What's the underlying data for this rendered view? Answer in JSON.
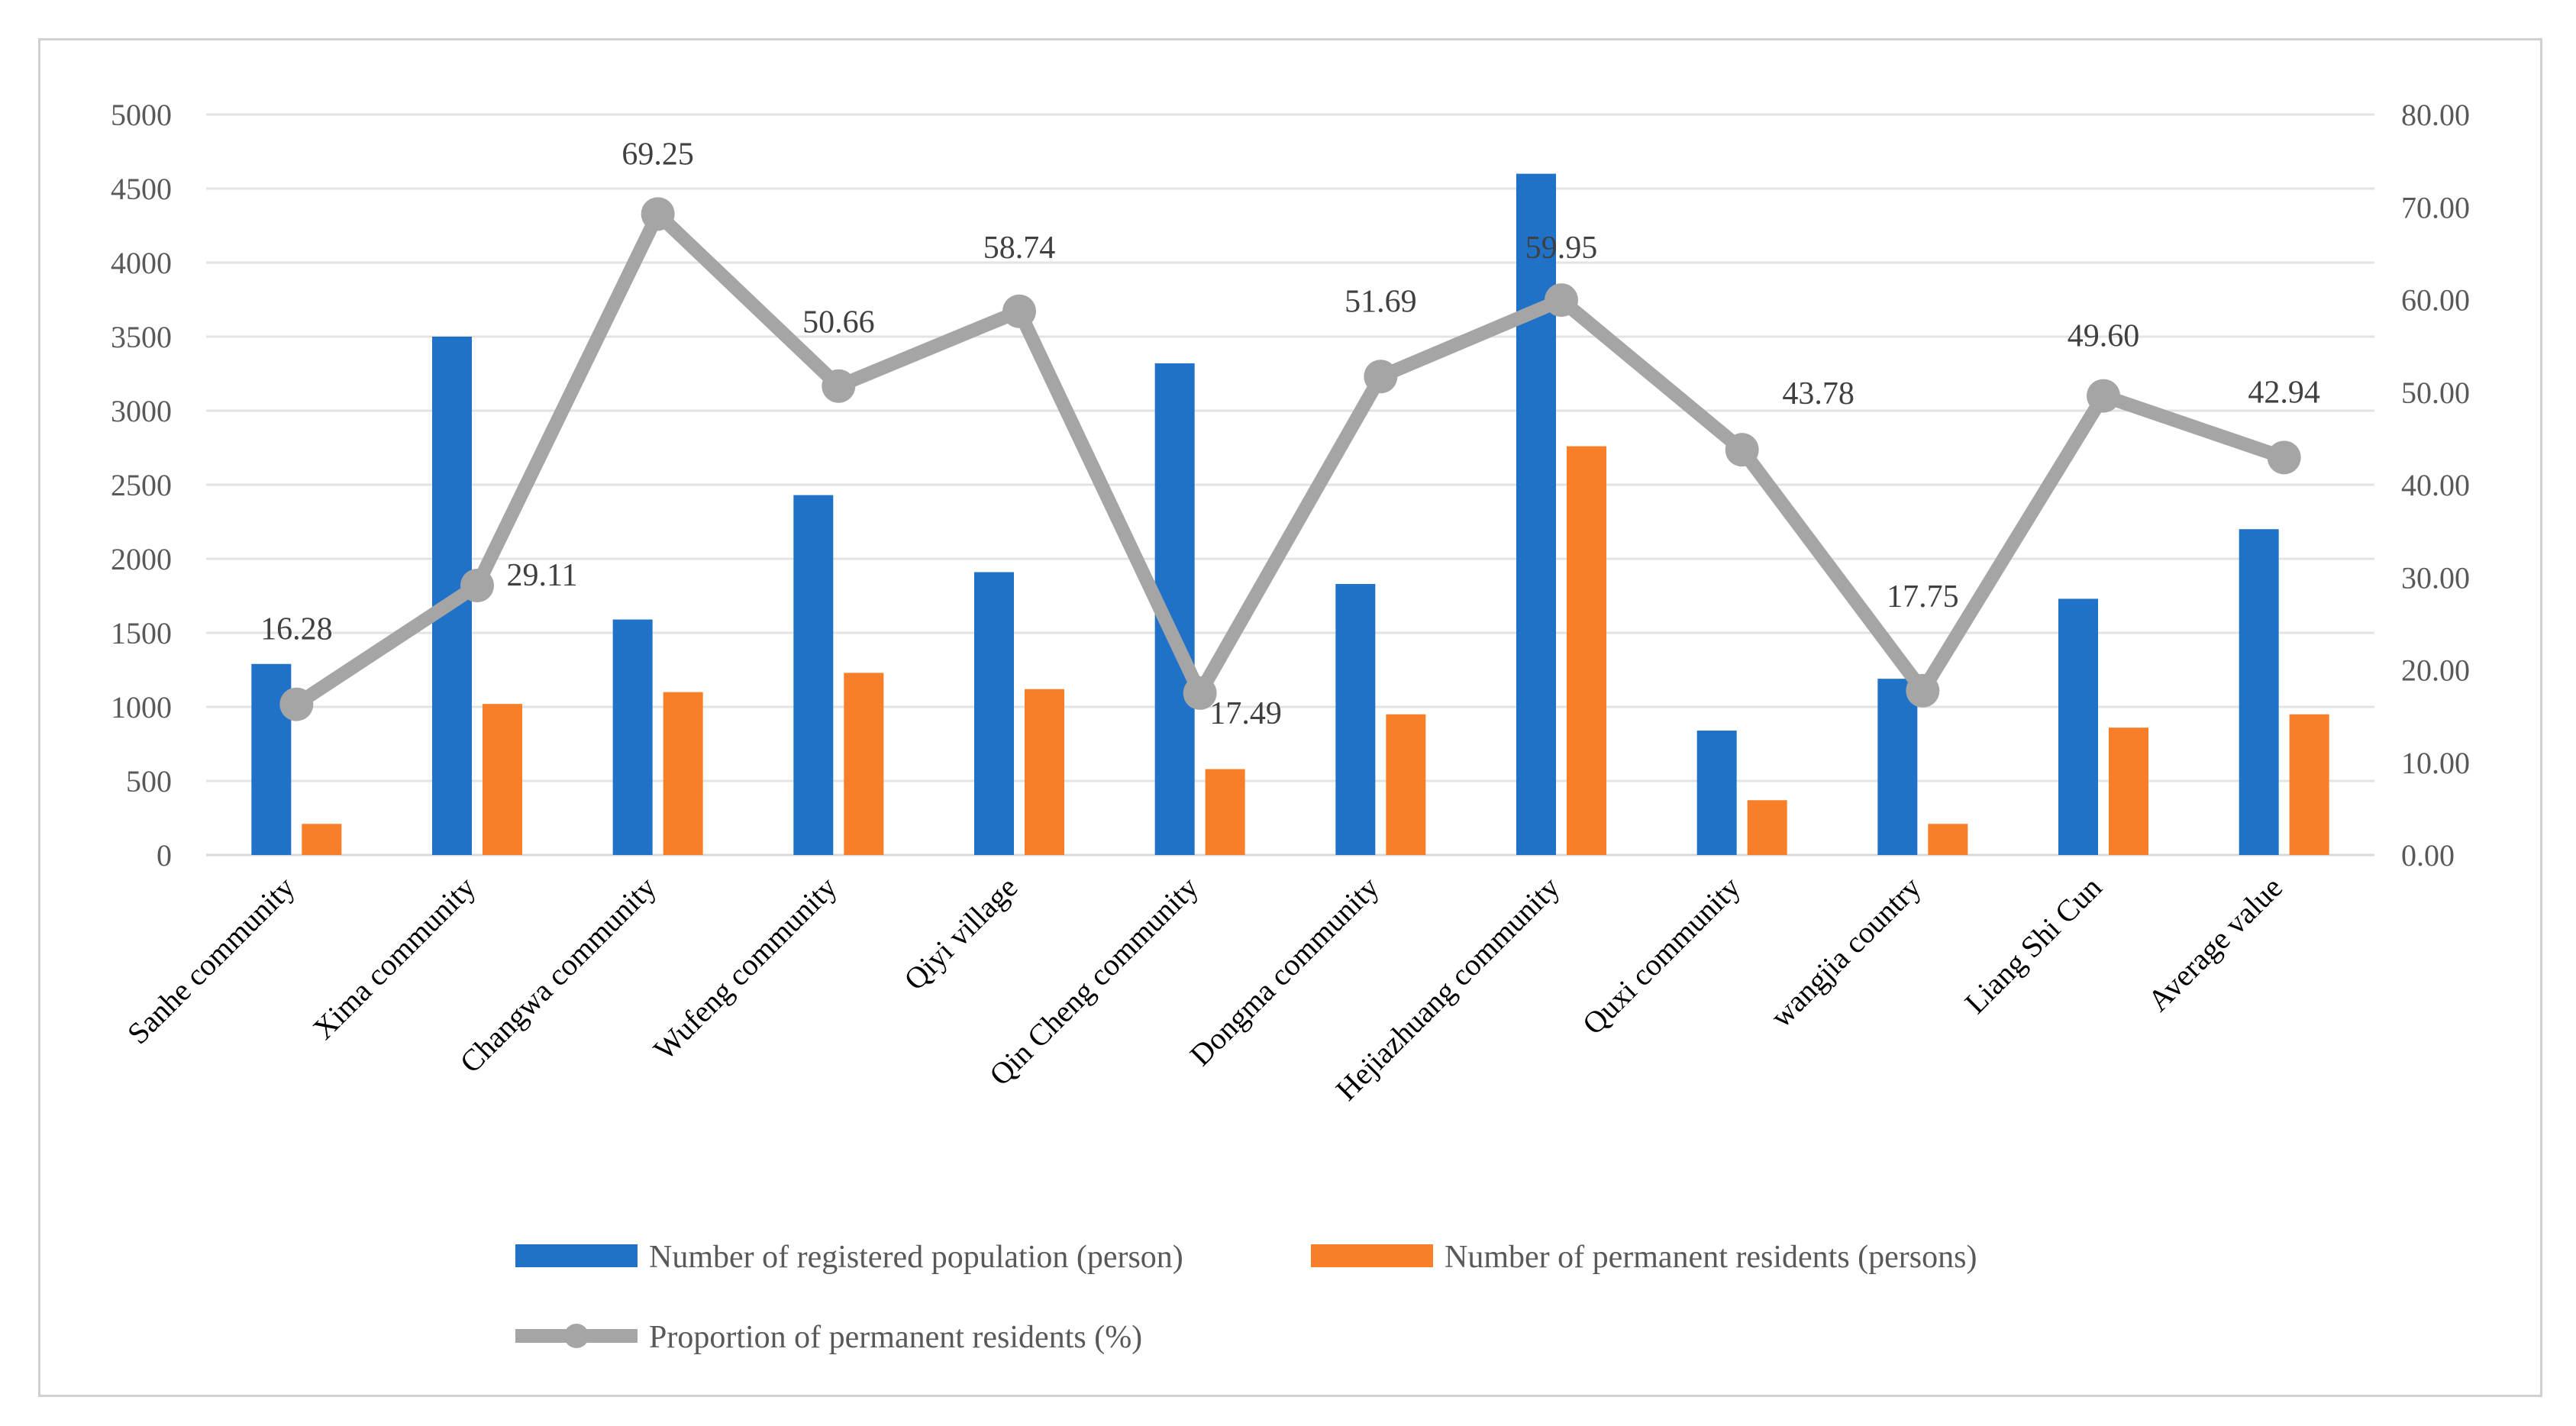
{
  "chart_data": {
    "type": "bar+line",
    "categories": [
      "Sanhe community",
      "Xima community",
      "Changwa community",
      "Wufeng community",
      "Qiyi village",
      "Qin Cheng community",
      "Dongma community",
      "Hejiazhuang community",
      "Quxi community",
      "wangjia country",
      "Liang Shi Cun",
      "Average value"
    ],
    "series": [
      {
        "name": "Number of registered population (person)",
        "type": "bar",
        "axis": "left",
        "color": "#1F72C8",
        "values": [
          1290,
          3500,
          1590,
          2430,
          1910,
          3320,
          1830,
          4600,
          840,
          1190,
          1730,
          2200
        ]
      },
      {
        "name": "Number of permanent residents (persons)",
        "type": "bar",
        "axis": "left",
        "color": "#F97E2A",
        "values": [
          210,
          1020,
          1100,
          1230,
          1120,
          580,
          950,
          2760,
          370,
          210,
          860,
          950
        ]
      },
      {
        "name": "Proportion of permanent residents (%)",
        "type": "line",
        "axis": "right",
        "color": "#A5A5A5",
        "values": [
          16.28,
          29.11,
          69.25,
          50.66,
          58.74,
          17.49,
          51.69,
          59.95,
          43.78,
          17.75,
          49.6,
          42.94
        ],
        "labels": [
          "16.28",
          "29.11",
          "69.25",
          "50.66",
          "58.74",
          "17.49",
          "51.69",
          "59.95",
          "43.78",
          "17.75",
          "49.60",
          "42.94"
        ]
      }
    ],
    "y_left": {
      "min": 0,
      "max": 5000,
      "step": 500,
      "ticks": [
        "0",
        "500",
        "1000",
        "1500",
        "2000",
        "2500",
        "3000",
        "3500",
        "4000",
        "4500",
        "5000"
      ]
    },
    "y_right": {
      "min": 0,
      "max": 80,
      "step": 10,
      "ticks": [
        "0.00",
        "10.00",
        "20.00",
        "30.00",
        "40.00",
        "50.00",
        "60.00",
        "70.00",
        "80.00"
      ]
    },
    "grid": true,
    "legend_position": "bottom"
  }
}
